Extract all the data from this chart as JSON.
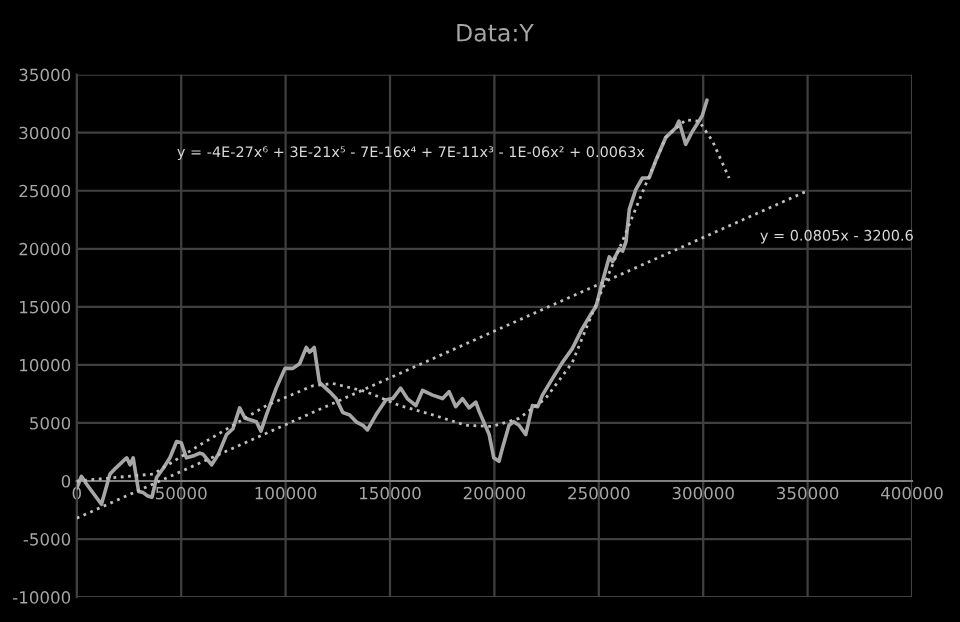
{
  "chart_data": {
    "type": "line",
    "title": "Data:Y",
    "xlim": [
      0,
      400000
    ],
    "xticks": [
      0,
      50000,
      100000,
      150000,
      200000,
      250000,
      300000,
      350000,
      400000
    ],
    "ylim": [
      -10000,
      35000
    ],
    "yticks": [
      -10000,
      -5000,
      0,
      5000,
      10000,
      15000,
      20000,
      25000,
      30000,
      35000
    ],
    "grid": true,
    "marker": "none",
    "series": [
      {
        "color": "#a6a6a6",
        "line_style": "solid",
        "x": [
          0,
          2200,
          4800,
          11800,
          15900,
          18000,
          23900,
          25500,
          27000,
          29600,
          31800,
          34000,
          36000,
          38200,
          41400,
          44600,
          47800,
          50000,
          52500,
          56400,
          58900,
          60500,
          64600,
          67800,
          71700,
          74800,
          78000,
          80600,
          86000,
          88200,
          90800,
          95500,
          99700,
          103500,
          106700,
          109900,
          111500,
          113700,
          116200,
          121000,
          124200,
          127400,
          130600,
          133800,
          137000,
          139200,
          143300,
          148100,
          151300,
          155100,
          158300,
          162400,
          165600,
          170400,
          175200,
          178300,
          181500,
          184700,
          187900,
          191100,
          192700,
          197500,
          199700,
          202200,
          203800,
          207000,
          209200,
          211800,
          215000,
          218200,
          220700,
          223000,
          227700,
          232500,
          237300,
          242000,
          247000,
          248600,
          251800,
          255000,
          256600,
          259800,
          261400,
          263000,
          264600,
          267700,
          270900,
          274100,
          277300,
          282100,
          286800,
          288400,
          291600,
          294800,
          298000,
          299600,
          301800
        ],
        "values": [
          -600,
          400,
          -300,
          -2000,
          600,
          1000,
          2000,
          1400,
          2000,
          -900,
          -1000,
          -1300,
          -1400,
          300,
          1100,
          2000,
          3400,
          3300,
          2000,
          2200,
          2400,
          2300,
          1400,
          2300,
          4000,
          4500,
          6300,
          5400,
          5100,
          4300,
          5700,
          8000,
          9700,
          9700,
          10100,
          11500,
          11100,
          11500,
          8500,
          7700,
          7100,
          5900,
          5700,
          5100,
          4800,
          4400,
          5700,
          7000,
          7100,
          8000,
          7100,
          6500,
          7800,
          7400,
          7100,
          7700,
          6400,
          7100,
          6300,
          6800,
          6000,
          4000,
          2000,
          1700,
          2800,
          4800,
          5100,
          4800,
          4000,
          6500,
          6400,
          7400,
          8800,
          10200,
          11400,
          13100,
          14600,
          15000,
          17200,
          19300,
          18900,
          20000,
          19800,
          20600,
          23400,
          25100,
          26100,
          26100,
          27600,
          29600,
          30400,
          31000,
          29000,
          30100,
          31000,
          31500,
          32800
        ]
      },
      {
        "color": "#bfbfbf",
        "line_style": "dotted",
        "x": [
          0,
          36600,
          58900,
          90800,
          113000,
          122600,
          138500,
          154500,
          170400,
          186300,
          199000,
          211800,
          224500,
          237300,
          248400,
          259800,
          272600,
          282100,
          291600,
          298000,
          304400,
          312400
        ],
        "values": [
          0,
          600,
          3100,
          6500,
          8200,
          8400,
          7700,
          6500,
          5700,
          4800,
          4700,
          5400,
          7100,
          10200,
          15100,
          20000,
          25600,
          29600,
          31100,
          31000,
          29300,
          26100
        ]
      },
      {
        "color": "#bfbfbf",
        "line_style": "dotted",
        "x": [
          0,
          350000
        ],
        "values": [
          -3200,
          25000
        ]
      }
    ],
    "annotations": [
      "y = -4E-27x⁶ + 3E-21x⁵ - 7E-16x⁴ + 7E-11x³ - 1E-06x² + 0.0063x",
      "y = 0.0805x - 3200.6"
    ]
  }
}
